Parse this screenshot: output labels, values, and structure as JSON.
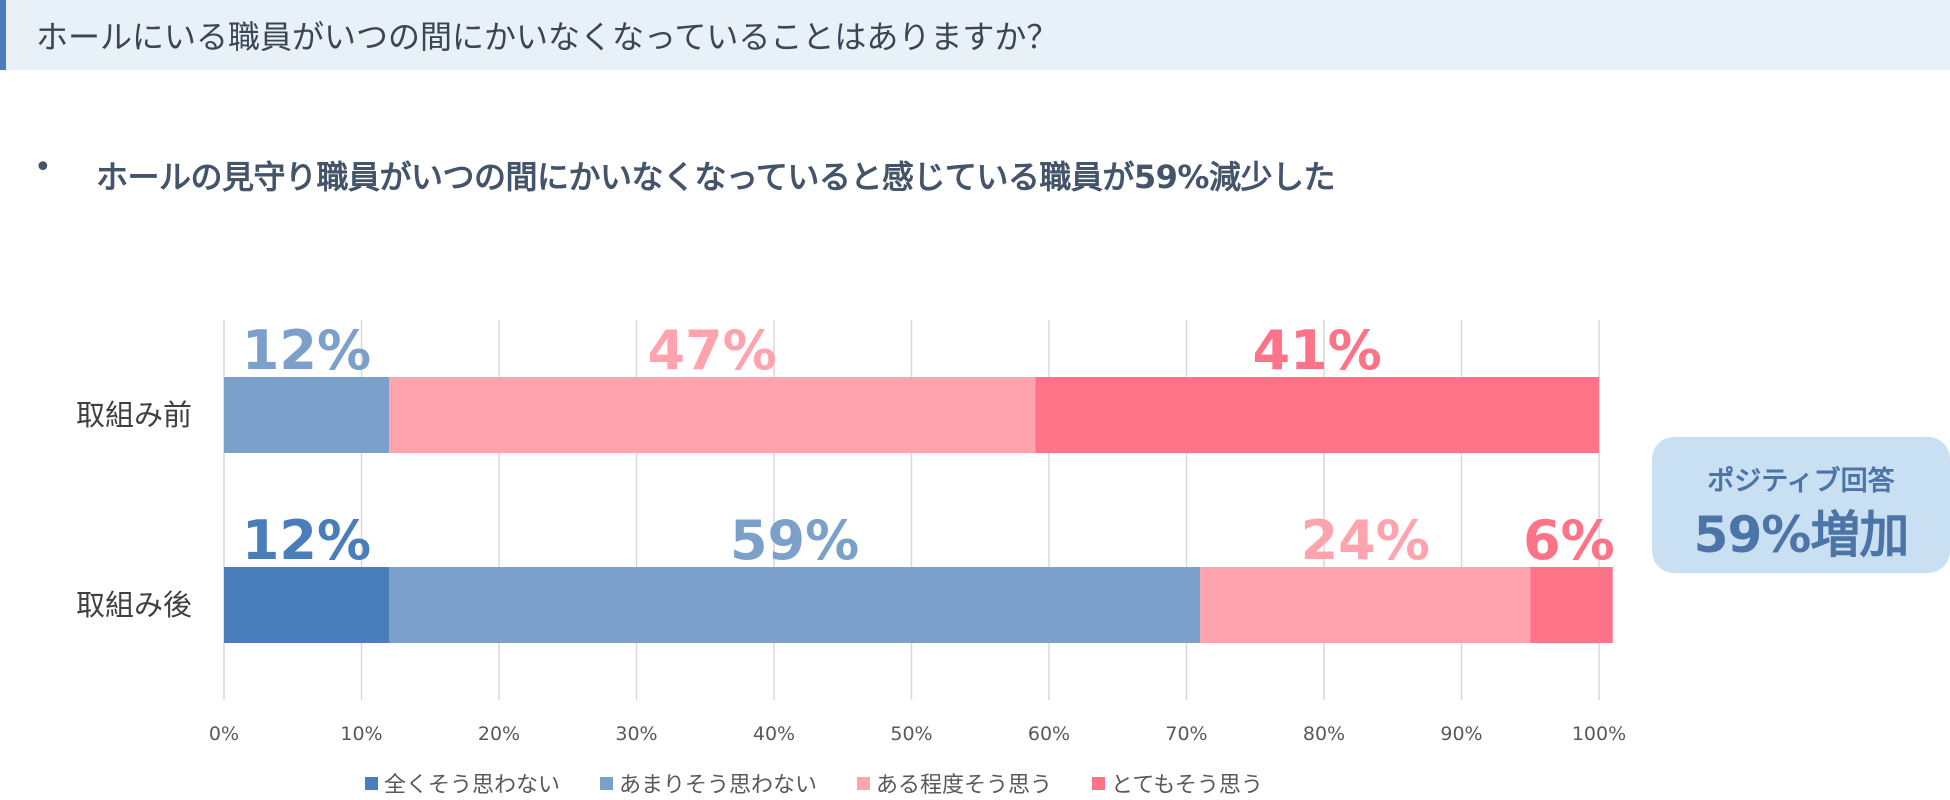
{
  "header": {
    "title": "ホールにいる職員がいつの間にかいなくなっていることはありますか？"
  },
  "summary": {
    "bullet": "•",
    "text": "ホールの見守り職員がいつの間にかいなくなっていると感じている職員が59%減少した"
  },
  "callout": {
    "line1": "ポジティブ回答",
    "line2": "59%増加"
  },
  "chart_data": {
    "type": "bar",
    "orientation": "horizontal",
    "stacked": true,
    "categories": [
      "取組み前",
      "取組み後"
    ],
    "series": [
      {
        "name": "全くそう思わない",
        "values": [
          0,
          12
        ],
        "labels": [
          "",
          "12%"
        ],
        "color": "#4a7ebb"
      },
      {
        "name": "あまりそう思わない",
        "values": [
          12,
          59
        ],
        "labels": [
          "12%",
          "59%"
        ],
        "color": "#7ba0c9"
      },
      {
        "name": "ある程度そう思う",
        "values": [
          47,
          24
        ],
        "labels": [
          "47%",
          "24%"
        ],
        "color": "#ffa4af"
      },
      {
        "name": "とてもそう思う",
        "values": [
          41,
          6
        ],
        "labels": [
          "41%",
          "6%"
        ],
        "color": "#ff7388"
      }
    ],
    "xlim": [
      0,
      100
    ],
    "xticks": [
      "0%",
      "10%",
      "20%",
      "30%",
      "40%",
      "50%",
      "60%",
      "70%",
      "80%",
      "90%",
      "100%"
    ],
    "grid": true,
    "legend_position": "bottom"
  }
}
